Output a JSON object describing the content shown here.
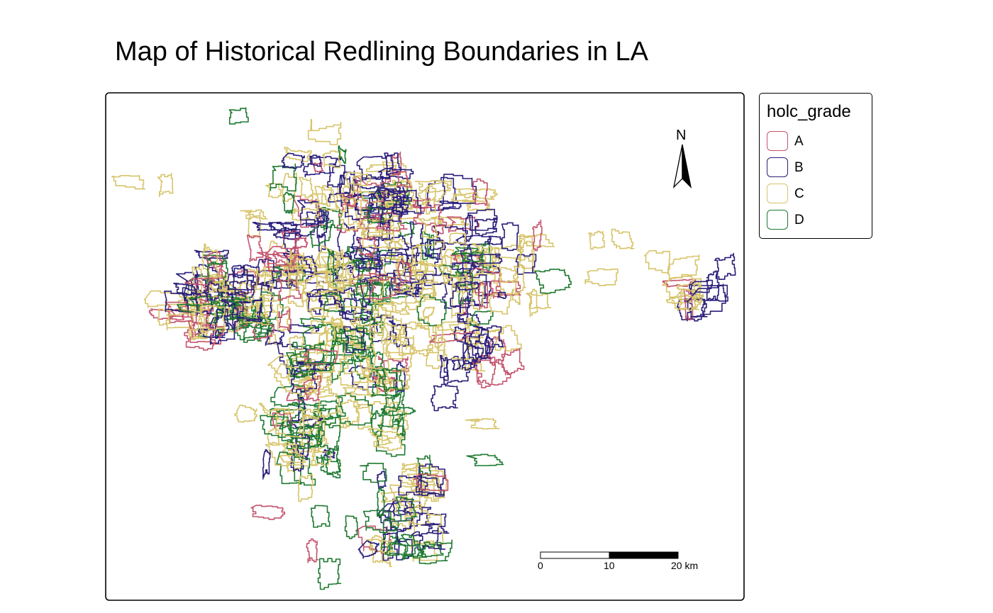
{
  "title": "Map of Historical Redlining Boundaries in LA",
  "legend": {
    "title": "holc_grade",
    "items": [
      {
        "label": "A",
        "color": "#c4546e"
      },
      {
        "label": "B",
        "color": "#2a1f7a"
      },
      {
        "label": "C",
        "color": "#d7c46a"
      },
      {
        "label": "D",
        "color": "#1f7a31"
      }
    ]
  },
  "north_arrow": {
    "label": "N"
  },
  "scale_bar": {
    "labels": [
      "0",
      "10",
      "20 km"
    ]
  }
}
